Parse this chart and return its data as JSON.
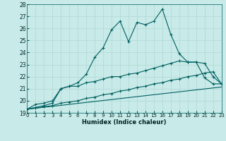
{
  "bg_color": "#c8eae8",
  "grid_color": "#b0d8d4",
  "line_color": "#006060",
  "x_min": 0,
  "x_max": 23,
  "y_min": 19,
  "y_max": 28,
  "xlabel": "Humidex (Indice chaleur)",
  "x_ticks": [
    0,
    1,
    2,
    3,
    4,
    5,
    6,
    7,
    8,
    9,
    10,
    11,
    12,
    13,
    14,
    15,
    16,
    17,
    18,
    19,
    20,
    21,
    22,
    23
  ],
  "y_ticks": [
    19,
    20,
    21,
    22,
    23,
    24,
    25,
    26,
    27,
    28
  ],
  "series1_x": [
    0,
    1,
    2,
    3,
    4,
    5,
    6,
    7,
    8,
    9,
    10,
    11,
    12,
    13,
    14,
    15,
    16,
    17,
    18,
    19,
    20,
    21,
    22,
    23
  ],
  "series1_y": [
    19.3,
    19.7,
    19.8,
    20.0,
    21.0,
    21.2,
    21.5,
    22.2,
    23.6,
    24.4,
    25.9,
    26.6,
    24.9,
    26.5,
    26.3,
    26.6,
    27.6,
    25.5,
    23.9,
    23.2,
    23.2,
    21.9,
    21.4,
    21.4
  ],
  "series2_x": [
    0,
    2,
    3,
    4,
    5,
    6,
    7,
    8,
    9,
    10,
    11,
    12,
    13,
    14,
    15,
    16,
    17,
    18,
    19,
    20,
    21,
    22,
    23
  ],
  "series2_y": [
    19.3,
    19.6,
    19.8,
    21.0,
    21.2,
    21.2,
    21.5,
    21.6,
    21.8,
    22.0,
    22.0,
    22.2,
    22.3,
    22.5,
    22.7,
    22.9,
    23.1,
    23.3,
    23.2,
    23.2,
    23.1,
    22.0,
    21.4
  ],
  "series3_x": [
    0,
    1,
    2,
    3,
    4,
    5,
    6,
    7,
    8,
    9,
    10,
    11,
    12,
    13,
    14,
    15,
    16,
    17,
    18,
    19,
    20,
    21,
    22,
    23
  ],
  "series3_y": [
    19.3,
    19.4,
    19.5,
    19.6,
    19.8,
    19.9,
    20.0,
    20.2,
    20.3,
    20.5,
    20.6,
    20.8,
    20.9,
    21.1,
    21.2,
    21.4,
    21.5,
    21.7,
    21.8,
    22.0,
    22.1,
    22.3,
    22.4,
    21.4
  ],
  "series4_x": [
    0,
    1,
    2,
    3,
    4,
    5,
    6,
    7,
    8,
    9,
    10,
    11,
    12,
    13,
    14,
    15,
    16,
    17,
    18,
    19,
    20,
    21,
    22,
    23
  ],
  "series4_y": [
    19.3,
    19.38,
    19.46,
    19.54,
    19.62,
    19.7,
    19.78,
    19.86,
    19.94,
    20.02,
    20.1,
    20.18,
    20.26,
    20.34,
    20.42,
    20.5,
    20.58,
    20.66,
    20.74,
    20.82,
    20.9,
    20.98,
    21.06,
    21.14
  ]
}
